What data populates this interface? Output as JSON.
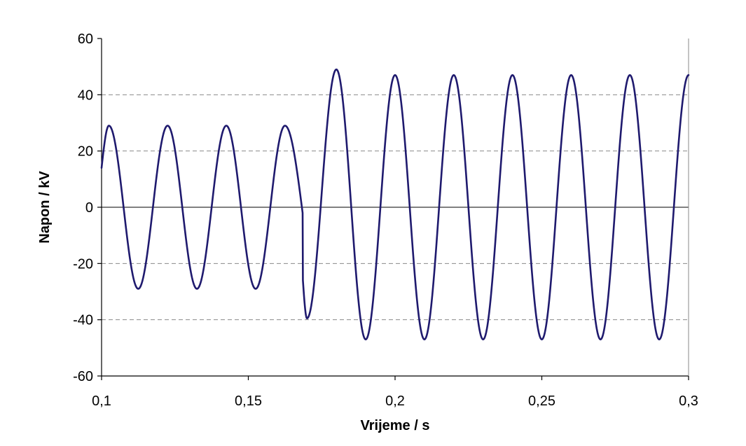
{
  "chart_data": {
    "type": "line",
    "title": "",
    "xlabel": "Vrijeme / s",
    "ylabel": "Napon / kV",
    "xlim": [
      0.1,
      0.3
    ],
    "ylim": [
      -60,
      60
    ],
    "x_ticks": [
      0.1,
      0.15,
      0.2,
      0.25,
      0.3
    ],
    "x_tick_labels": [
      "0,1",
      "0,15",
      "0,2",
      "0,25",
      "0,3"
    ],
    "y_ticks": [
      -60,
      -40,
      -20,
      0,
      20,
      40,
      60
    ],
    "y_tick_labels": [
      "-60",
      "-40",
      "-20",
      "0",
      "20",
      "40",
      "60"
    ],
    "grid": "horizontal dashed",
    "legend": "none",
    "series_color": "#1f1a6e",
    "series": [
      {
        "points": [
          [
            0.1,
            14
          ],
          [
            0.1025,
            29
          ],
          [
            0.1075,
            0
          ],
          [
            0.1125,
            -29
          ],
          [
            0.1175,
            0
          ],
          [
            0.1225,
            29
          ],
          [
            0.1275,
            0
          ],
          [
            0.1325,
            -29
          ],
          [
            0.1375,
            0
          ],
          [
            0.1425,
            29
          ],
          [
            0.1475,
            0
          ],
          [
            0.1525,
            -29
          ],
          [
            0.1575,
            0
          ],
          [
            0.1625,
            29
          ],
          [
            0.1685,
            -2
          ],
          [
            0.1686,
            -26
          ],
          [
            0.17,
            -39.5
          ],
          [
            0.175,
            5
          ],
          [
            0.18,
            49
          ],
          [
            0.185,
            1
          ],
          [
            0.19,
            -47
          ],
          [
            0.195,
            0
          ],
          [
            0.2,
            47
          ],
          [
            0.205,
            0
          ],
          [
            0.21,
            -47
          ],
          [
            0.215,
            0
          ],
          [
            0.22,
            47
          ],
          [
            0.225,
            0
          ],
          [
            0.23,
            -47
          ],
          [
            0.235,
            0
          ],
          [
            0.24,
            47
          ],
          [
            0.245,
            0
          ],
          [
            0.25,
            -47
          ],
          [
            0.255,
            0
          ],
          [
            0.26,
            47
          ],
          [
            0.265,
            0
          ],
          [
            0.27,
            -47
          ],
          [
            0.275,
            0
          ],
          [
            0.28,
            47
          ],
          [
            0.285,
            0
          ],
          [
            0.29,
            -47
          ],
          [
            0.295,
            0
          ],
          [
            0.3,
            47
          ]
        ]
      }
    ]
  }
}
